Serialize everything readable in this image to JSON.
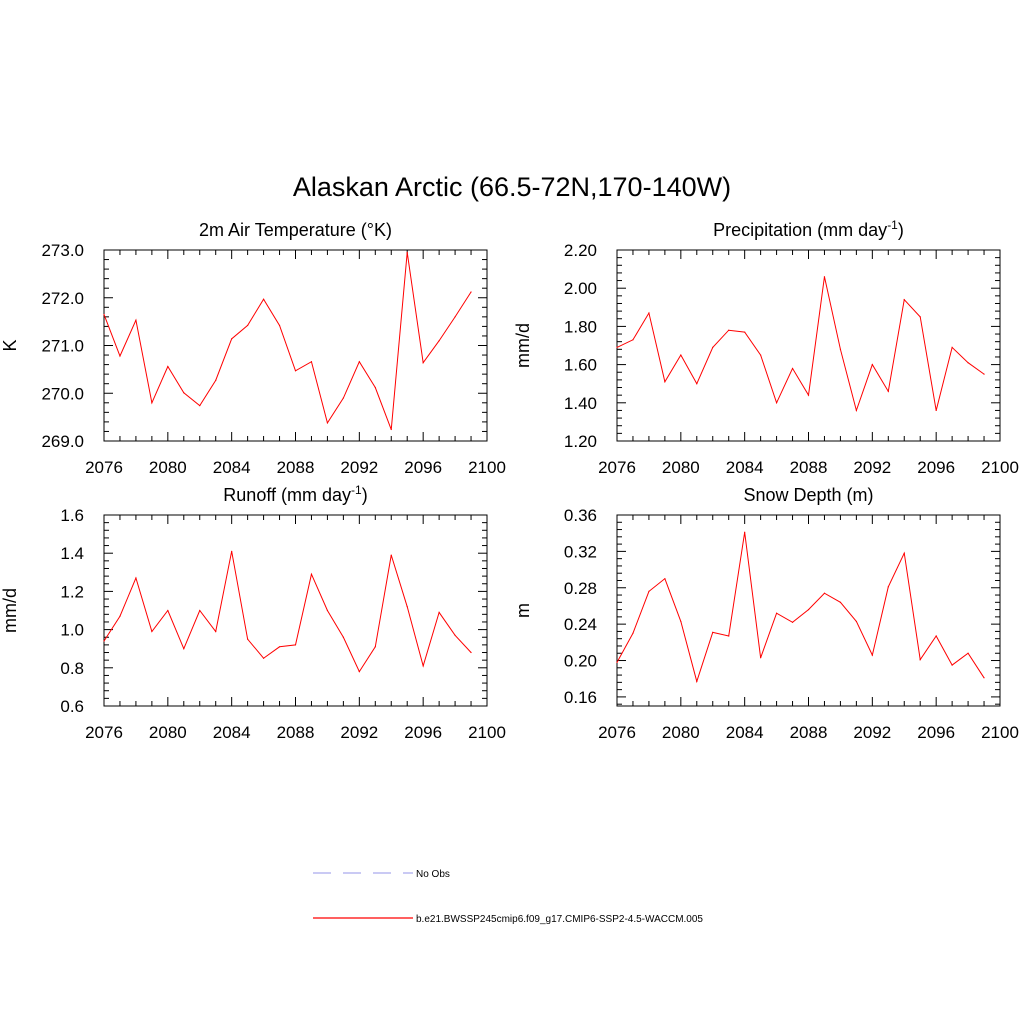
{
  "title": "Alaskan Arctic (66.5-72N,170-140W)",
  "chart_data": [
    {
      "type": "line",
      "title": "2m Air Temperature (°K)",
      "xlabel": "",
      "ylabel": "K",
      "xlim": [
        2076,
        2100
      ],
      "ylim": [
        269.0,
        273.0
      ],
      "xticks": [
        2076,
        2080,
        2084,
        2088,
        2092,
        2096,
        2100
      ],
      "yticks": [
        269.0,
        270.0,
        271.0,
        272.0,
        273.0
      ],
      "ytick_decimals": 1,
      "color": "#ff0000",
      "series": [
        {
          "x": [
            2076,
            2077,
            2078,
            2079,
            2080,
            2081,
            2082,
            2083,
            2084,
            2085,
            2086,
            2087,
            2088,
            2089,
            2090,
            2091,
            2092,
            2093,
            2094,
            2095,
            2096,
            2097,
            2098,
            2099
          ],
          "values": [
            271.65,
            270.78,
            271.53,
            269.8,
            270.56,
            270.01,
            269.74,
            270.27,
            271.14,
            271.42,
            271.97,
            271.42,
            270.47,
            270.66,
            269.38,
            269.9,
            270.66,
            270.12,
            269.24,
            272.95,
            270.64,
            271.1,
            271.6,
            272.12
          ]
        }
      ]
    },
    {
      "type": "line",
      "title": "Precipitation (mm day-1)",
      "title_parts": [
        "Precipitation (mm day",
        "-1",
        ")"
      ],
      "xlabel": "",
      "ylabel": "mm/d",
      "xlim": [
        2076,
        2100
      ],
      "ylim": [
        1.2,
        2.2
      ],
      "xticks": [
        2076,
        2080,
        2084,
        2088,
        2092,
        2096,
        2100
      ],
      "yticks": [
        1.2,
        1.4,
        1.6,
        1.8,
        2.0,
        2.2
      ],
      "ytick_decimals": 2,
      "color": "#ff0000",
      "series": [
        {
          "x": [
            2076,
            2077,
            2078,
            2079,
            2080,
            2081,
            2082,
            2083,
            2084,
            2085,
            2086,
            2087,
            2088,
            2089,
            2090,
            2091,
            2092,
            2093,
            2094,
            2095,
            2096,
            2097,
            2098,
            2099
          ],
          "values": [
            1.69,
            1.73,
            1.87,
            1.51,
            1.65,
            1.5,
            1.69,
            1.78,
            1.77,
            1.65,
            1.4,
            1.58,
            1.44,
            2.06,
            1.68,
            1.36,
            1.6,
            1.46,
            1.94,
            1.85,
            1.36,
            1.69,
            1.61,
            1.55
          ]
        }
      ]
    },
    {
      "type": "line",
      "title": "Runoff (mm day-1)",
      "title_parts": [
        "Runoff (mm day",
        "-1",
        ")"
      ],
      "xlabel": "",
      "ylabel": "mm/d",
      "xlim": [
        2076,
        2100
      ],
      "ylim": [
        0.6,
        1.6
      ],
      "xticks": [
        2076,
        2080,
        2084,
        2088,
        2092,
        2096,
        2100
      ],
      "yticks": [
        0.6,
        0.8,
        1.0,
        1.2,
        1.4,
        1.6
      ],
      "ytick_decimals": 1,
      "color": "#ff0000",
      "series": [
        {
          "x": [
            2076,
            2077,
            2078,
            2079,
            2080,
            2081,
            2082,
            2083,
            2084,
            2085,
            2086,
            2087,
            2088,
            2089,
            2090,
            2091,
            2092,
            2093,
            2094,
            2095,
            2096,
            2097,
            2098,
            2099
          ],
          "values": [
            0.94,
            1.07,
            1.27,
            0.99,
            1.1,
            0.9,
            1.1,
            0.99,
            1.41,
            0.95,
            0.85,
            0.91,
            0.92,
            1.29,
            1.1,
            0.96,
            0.78,
            0.91,
            1.39,
            1.12,
            0.81,
            1.09,
            0.97,
            0.88
          ]
        }
      ]
    },
    {
      "type": "line",
      "title": "Snow Depth (m)",
      "xlabel": "",
      "ylabel": "m",
      "xlim": [
        2076,
        2100
      ],
      "ylim": [
        0.15,
        0.36
      ],
      "xticks": [
        2076,
        2080,
        2084,
        2088,
        2092,
        2096,
        2100
      ],
      "yticks": [
        0.16,
        0.2,
        0.24,
        0.28,
        0.32,
        0.36
      ],
      "ytick_decimals": 2,
      "color": "#ff0000",
      "series": [
        {
          "x": [
            2076,
            2077,
            2078,
            2079,
            2080,
            2081,
            2082,
            2083,
            2084,
            2085,
            2086,
            2087,
            2088,
            2089,
            2090,
            2091,
            2092,
            2093,
            2094,
            2095,
            2096,
            2097,
            2098,
            2099
          ],
          "values": [
            0.198,
            0.23,
            0.276,
            0.29,
            0.243,
            0.177,
            0.231,
            0.227,
            0.341,
            0.203,
            0.252,
            0.242,
            0.256,
            0.274,
            0.264,
            0.243,
            0.206,
            0.281,
            0.318,
            0.201,
            0.227,
            0.195,
            0.208,
            0.181
          ]
        }
      ]
    }
  ],
  "legend": [
    {
      "label": "No Obs",
      "color": "#aaaaee",
      "style": "dashed"
    },
    {
      "label": "b.e21.BWSSP245cmip6.f09_g17.CMIP6-SSP2-4.5-WACCM.005",
      "color": "#ff0000",
      "style": "solid"
    }
  ]
}
